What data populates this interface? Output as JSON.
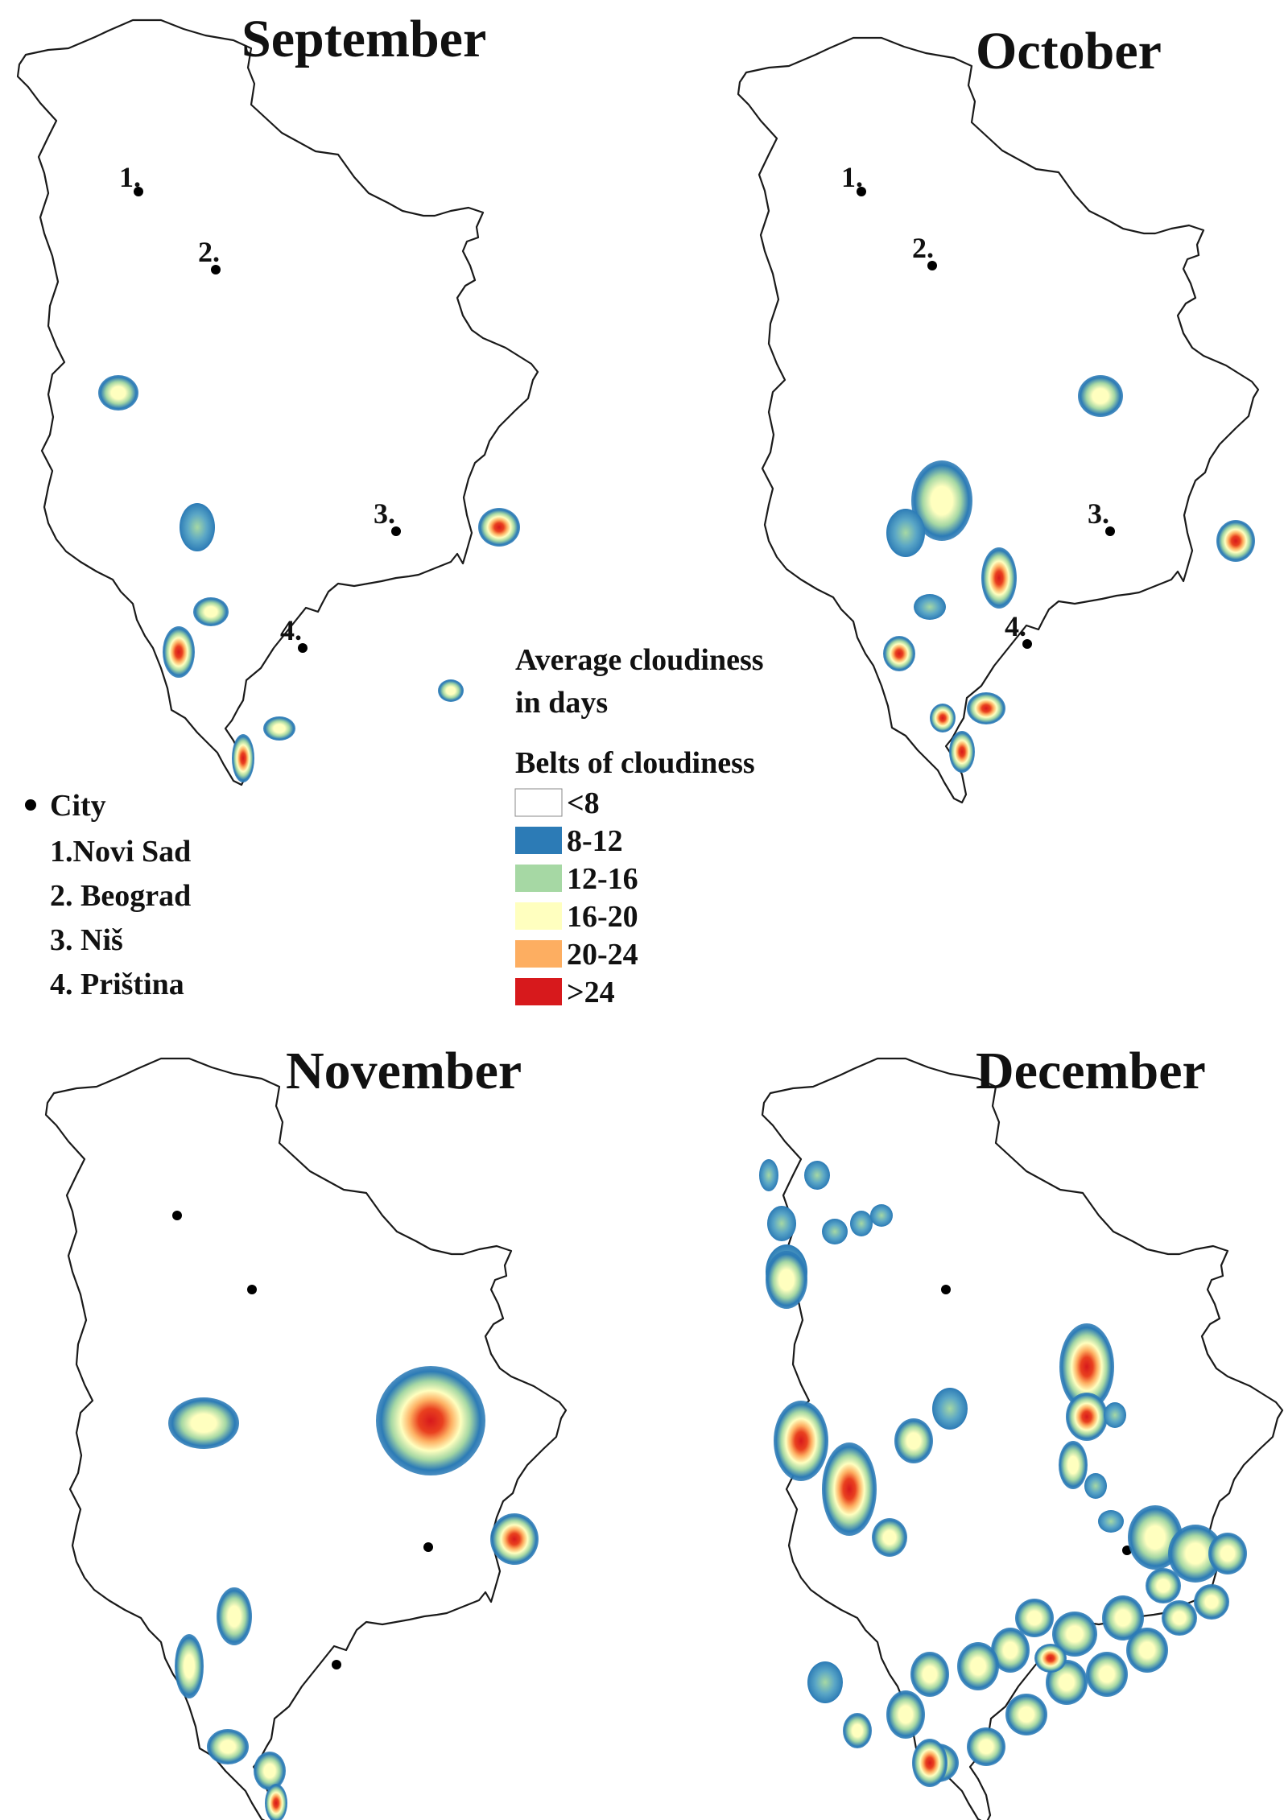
{
  "panels": [
    {
      "title": "September"
    },
    {
      "title": "October"
    },
    {
      "title": "November"
    },
    {
      "title": "December"
    }
  ],
  "cities": {
    "marker_label": "City",
    "items": [
      {
        "number": "1.",
        "name": "1.Novi Sad"
      },
      {
        "number": "2.",
        "name": "2. Beograd"
      },
      {
        "number": "3.",
        "name": "3. Niš"
      },
      {
        "number": "4.",
        "name": "4. Priština"
      }
    ]
  },
  "legend": {
    "title_line1": "Average cloudiness",
    "title_line2": "in days",
    "subtitle": "Belts of cloudiness",
    "classes": [
      {
        "label": "<8",
        "color": "#ffffff"
      },
      {
        "label": "8-12",
        "color": "#2c7bb6"
      },
      {
        "label": "12-16",
        "color": "#a6d8a4"
      },
      {
        "label": "16-20",
        "color": "#ffffbf"
      },
      {
        "label": "20-24",
        "color": "#fdae61"
      },
      {
        "label": ">24",
        "color": "#d7191c"
      }
    ]
  }
}
